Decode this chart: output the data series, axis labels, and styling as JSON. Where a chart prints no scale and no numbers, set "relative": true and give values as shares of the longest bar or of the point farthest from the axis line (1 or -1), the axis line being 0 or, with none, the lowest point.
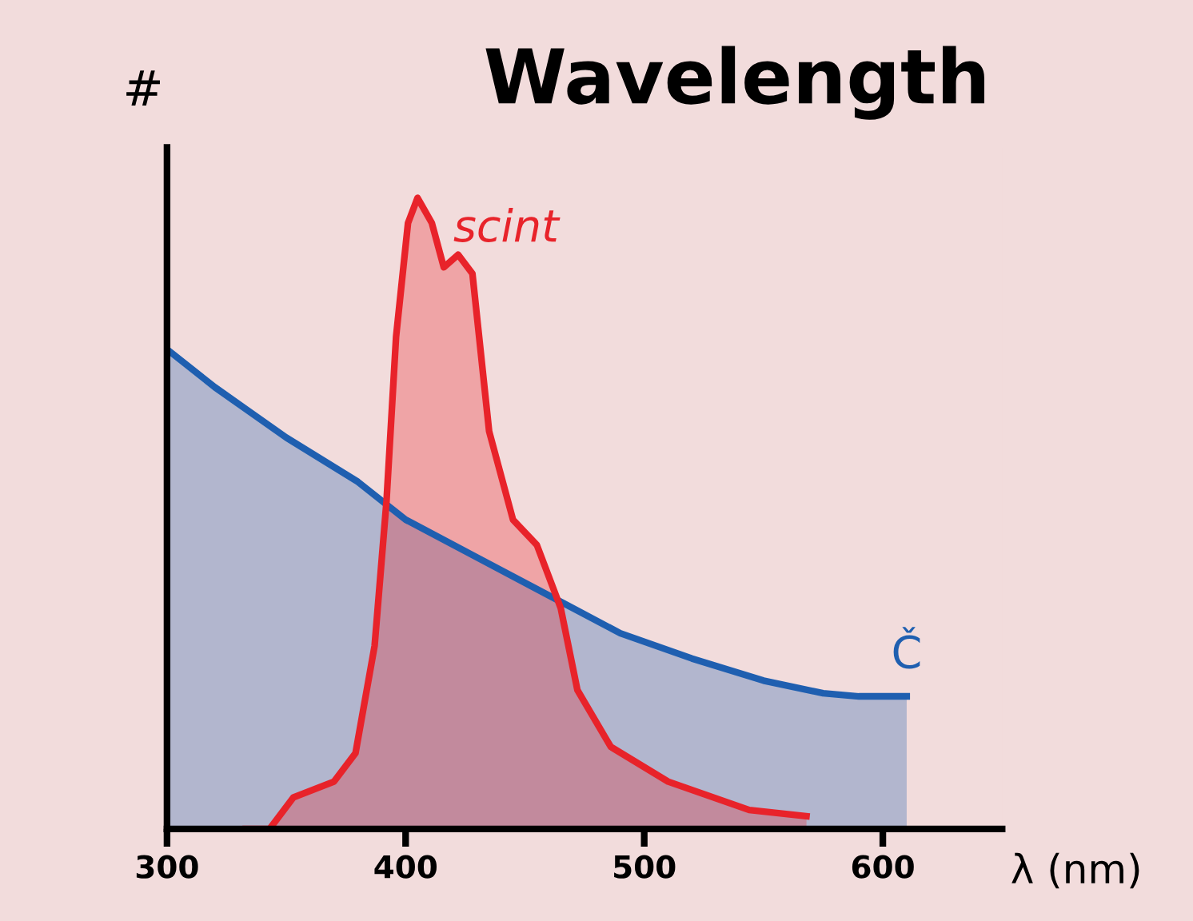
{
  "chart_data": {
    "type": "area",
    "title": "Wavelength",
    "xlabel": "λ (nm)",
    "ylabel": "#",
    "relative": true,
    "xlim": [
      300,
      650
    ],
    "xticks": [
      300,
      400,
      500,
      600
    ],
    "grid": false,
    "legend": false,
    "series": [
      {
        "name": "Č",
        "color": "#1f5fb0",
        "x": [
          300,
          320,
          350,
          380,
          400,
          430,
          460,
          490,
          520,
          550,
          575,
          590,
          610
        ],
        "values": [
          0.76,
          0.7,
          0.62,
          0.55,
          0.49,
          0.43,
          0.37,
          0.31,
          0.27,
          0.235,
          0.215,
          0.21,
          0.21
        ]
      },
      {
        "name": "scint",
        "color": "#e8232a",
        "x": [
          333,
          343,
          353,
          370,
          379,
          387,
          392,
          396,
          401,
          405,
          411,
          416,
          422,
          428,
          435,
          445,
          455,
          465,
          472,
          486,
          510,
          544,
          568
        ],
        "values": [
          0,
          0,
          0.05,
          0.075,
          0.12,
          0.29,
          0.52,
          0.78,
          0.96,
          1.0,
          0.96,
          0.89,
          0.91,
          0.88,
          0.63,
          0.49,
          0.45,
          0.35,
          0.22,
          0.13,
          0.075,
          0.03,
          0.02
        ]
      }
    ]
  }
}
